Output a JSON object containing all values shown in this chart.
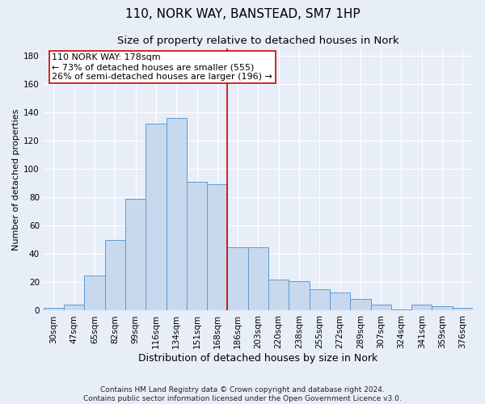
{
  "title": "110, NORK WAY, BANSTEAD, SM7 1HP",
  "subtitle": "Size of property relative to detached houses in Nork",
  "xlabel": "Distribution of detached houses by size in Nork",
  "ylabel": "Number of detached properties",
  "categories": [
    "30sqm",
    "47sqm",
    "65sqm",
    "82sqm",
    "99sqm",
    "116sqm",
    "134sqm",
    "151sqm",
    "168sqm",
    "186sqm",
    "203sqm",
    "220sqm",
    "238sqm",
    "255sqm",
    "272sqm",
    "289sqm",
    "307sqm",
    "324sqm",
    "341sqm",
    "359sqm",
    "376sqm"
  ],
  "values": [
    2,
    4,
    25,
    50,
    79,
    132,
    136,
    91,
    89,
    45,
    45,
    22,
    21,
    15,
    13,
    8,
    4,
    1,
    4,
    3,
    2
  ],
  "bar_color": "#c8d9ee",
  "bar_edge_color": "#5b9bd5",
  "property_line_x": 8.5,
  "property_line_color": "#cc0000",
  "annotation_text": "110 NORK WAY: 178sqm\n← 73% of detached houses are smaller (555)\n26% of semi-detached houses are larger (196) →",
  "annotation_box_color": "#ffffff",
  "annotation_box_edge": "#cc0000",
  "ylim": [
    0,
    185
  ],
  "yticks": [
    0,
    20,
    40,
    60,
    80,
    100,
    120,
    140,
    160,
    180
  ],
  "footnote": "Contains HM Land Registry data © Crown copyright and database right 2024.\nContains public sector information licensed under the Open Government Licence v3.0.",
  "background_color": "#e8eef8",
  "grid_color": "#ffffff",
  "title_fontsize": 11,
  "subtitle_fontsize": 9.5,
  "xlabel_fontsize": 9,
  "ylabel_fontsize": 8,
  "tick_fontsize": 7.5,
  "annotation_fontsize": 8,
  "footnote_fontsize": 6.5
}
